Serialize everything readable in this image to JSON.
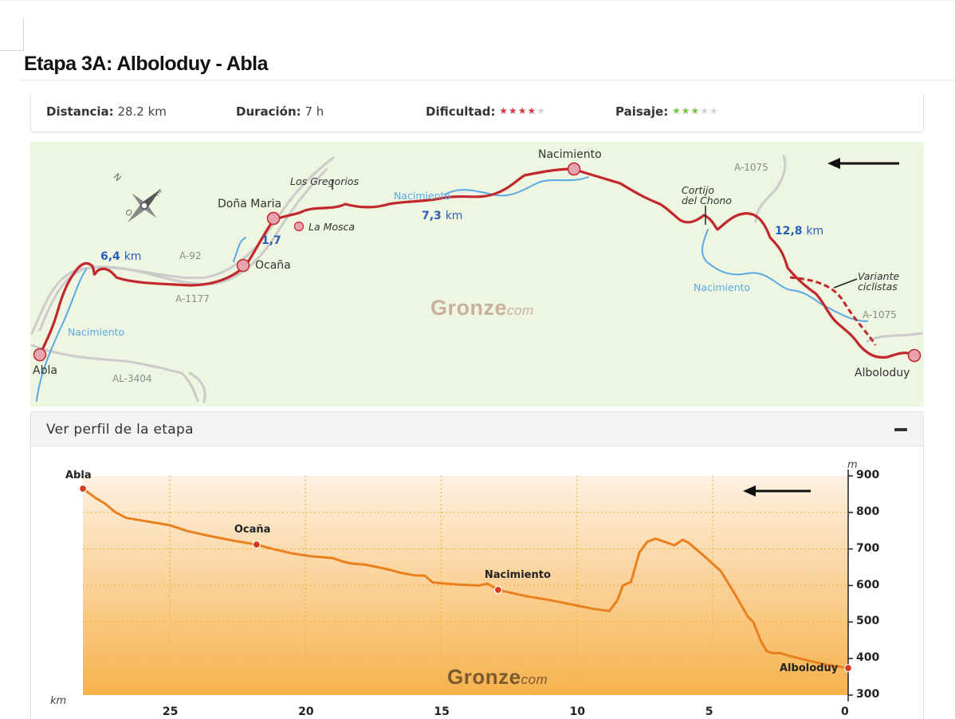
{
  "page": {
    "title": "Etapa 3A: Alboloduy - Abla"
  },
  "stats": {
    "distance_label": "Distancia:",
    "distance_value": "28.2 km",
    "duration_label": "Duración:",
    "duration_value": "7 h",
    "difficulty_label": "Dificultad:",
    "difficulty_stars": "★★★★",
    "difficulty_stars_off": "★",
    "difficulty_rating": 4,
    "landscape_label": "Paisaje:",
    "landscape_stars": "★★★",
    "landscape_stars_off": "★★",
    "landscape_rating": 3,
    "colors": {
      "difficulty": "#d63c47",
      "landscape": "#78c43c",
      "off": "#d4d4d4"
    }
  },
  "map": {
    "places": {
      "abla": "Abla",
      "ocana": "Ocaña",
      "dona_maria": "Doña Maria",
      "la_mosca": "La Mosca",
      "los_gregorios": "Los Gregorios",
      "nacimiento": "Nacimiento",
      "cortijo_line1": "Cortijo",
      "cortijo_line2": "del Chono",
      "alboloduy": "Alboloduy",
      "variante_line1": "Variante",
      "variante_line2": "ciclistas"
    },
    "roads": {
      "a1075_top": "A-1075",
      "a1075_bottom": "A-1075",
      "a92": "A-92",
      "a1177": "A-1177",
      "al3404": "AL-3404"
    },
    "rivers": {
      "r1": "Nacimiento",
      "r2": "Nacimiento",
      "r3": "Nacimiento"
    },
    "segments": {
      "s1_value": "6,4",
      "s1_unit": "km",
      "s2_value": "1,7",
      "s3_value": "7,3",
      "s3_unit": "km",
      "s4_value": "12,8",
      "s4_unit": "km"
    },
    "compass": {
      "n": "N",
      "e": "E",
      "o": "O"
    },
    "brand_big": "Gronze",
    "brand_small": "com",
    "direction_icon": "arrow-left-icon",
    "colors": {
      "route": "#c1272d",
      "river": "#5aa9e6",
      "road": "#c9c9c9",
      "background": "#eef5e0"
    }
  },
  "profile": {
    "header": "Ver perfil de la etapa",
    "collapse_icon": "minus-icon",
    "brand_big": "Gronze",
    "brand_small": "com",
    "x_unit": "km",
    "y_unit": "m"
  },
  "chart_data": {
    "type": "area",
    "title": "",
    "xlabel": "km",
    "ylabel": "m",
    "xlim": [
      28.2,
      0
    ],
    "ylim": [
      300,
      900
    ],
    "x_ticks": [
      25,
      20,
      15,
      10,
      5,
      0
    ],
    "y_ticks": [
      300,
      400,
      500,
      600,
      700,
      800,
      900
    ],
    "grid": true,
    "series": [
      {
        "x": [
          28.2,
          27.7,
          27.4,
          27.0,
          26.6,
          25.8,
          25.0,
          24.3,
          23.5,
          22.6,
          21.8,
          21.2,
          20.5,
          19.8,
          19.0,
          18.6,
          18.3,
          17.8,
          17.0,
          16.5,
          16.0,
          15.6,
          15.3,
          14.8,
          14.2,
          13.6,
          13.3,
          12.9,
          12.3,
          11.8,
          11.0,
          10.0,
          9.3,
          8.8,
          8.5,
          8.3,
          8.0,
          7.7,
          7.4,
          7.1,
          6.7,
          6.4,
          6.1,
          5.9,
          5.3,
          4.7,
          4.2,
          3.7,
          3.5,
          3.2,
          3.0,
          2.8,
          2.5,
          2.2,
          1.5,
          0.8,
          0.0
        ],
        "y": [
          865,
          838,
          825,
          800,
          785,
          775,
          765,
          748,
          735,
          722,
          712,
          700,
          688,
          680,
          675,
          665,
          660,
          657,
          645,
          635,
          628,
          627,
          608,
          605,
          602,
          600,
          605,
          588,
          578,
          570,
          560,
          545,
          535,
          530,
          560,
          600,
          610,
          690,
          720,
          728,
          718,
          710,
          725,
          718,
          680,
          640,
          580,
          515,
          500,
          445,
          420,
          415,
          415,
          408,
          395,
          383,
          374
        ]
      }
    ],
    "markers": [
      {
        "x": 28.2,
        "y": 865,
        "label": "Abla"
      },
      {
        "x": 21.8,
        "y": 712,
        "label": "Ocaña"
      },
      {
        "x": 12.9,
        "y": 588,
        "label": "Nacimiento"
      },
      {
        "x": 0.0,
        "y": 374,
        "label": "Alboloduy"
      }
    ],
    "colors": {
      "line": "#e8801e",
      "marker": "#d83b21",
      "fill_top": "#fdf1e2",
      "fill_bottom": "#f7b24c",
      "grid": "#f1b545"
    }
  }
}
